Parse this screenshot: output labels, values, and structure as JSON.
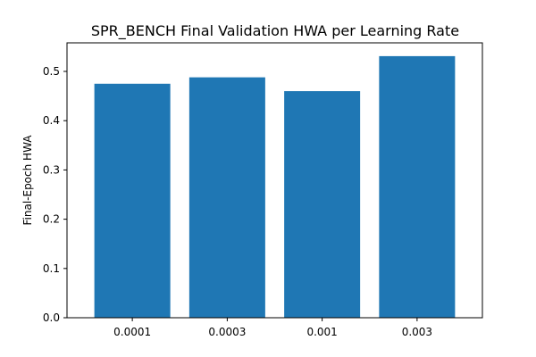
{
  "chart_data": {
    "type": "bar",
    "title": "SPR_BENCH Final Validation HWA per Learning Rate",
    "xlabel": "",
    "ylabel": "Final-Epoch HWA",
    "categories": [
      "0.0001",
      "0.0003",
      "0.001",
      "0.003"
    ],
    "values": [
      0.475,
      0.488,
      0.46,
      0.531
    ],
    "ylim": [
      0,
      0.558
    ],
    "yticks": [
      0.0,
      0.1,
      0.2,
      0.3,
      0.4,
      0.5
    ],
    "ytick_labels": [
      "0.0",
      "0.1",
      "0.2",
      "0.3",
      "0.4",
      "0.5"
    ],
    "bar_color": "#1f77b4",
    "grid": false,
    "legend": "none"
  }
}
